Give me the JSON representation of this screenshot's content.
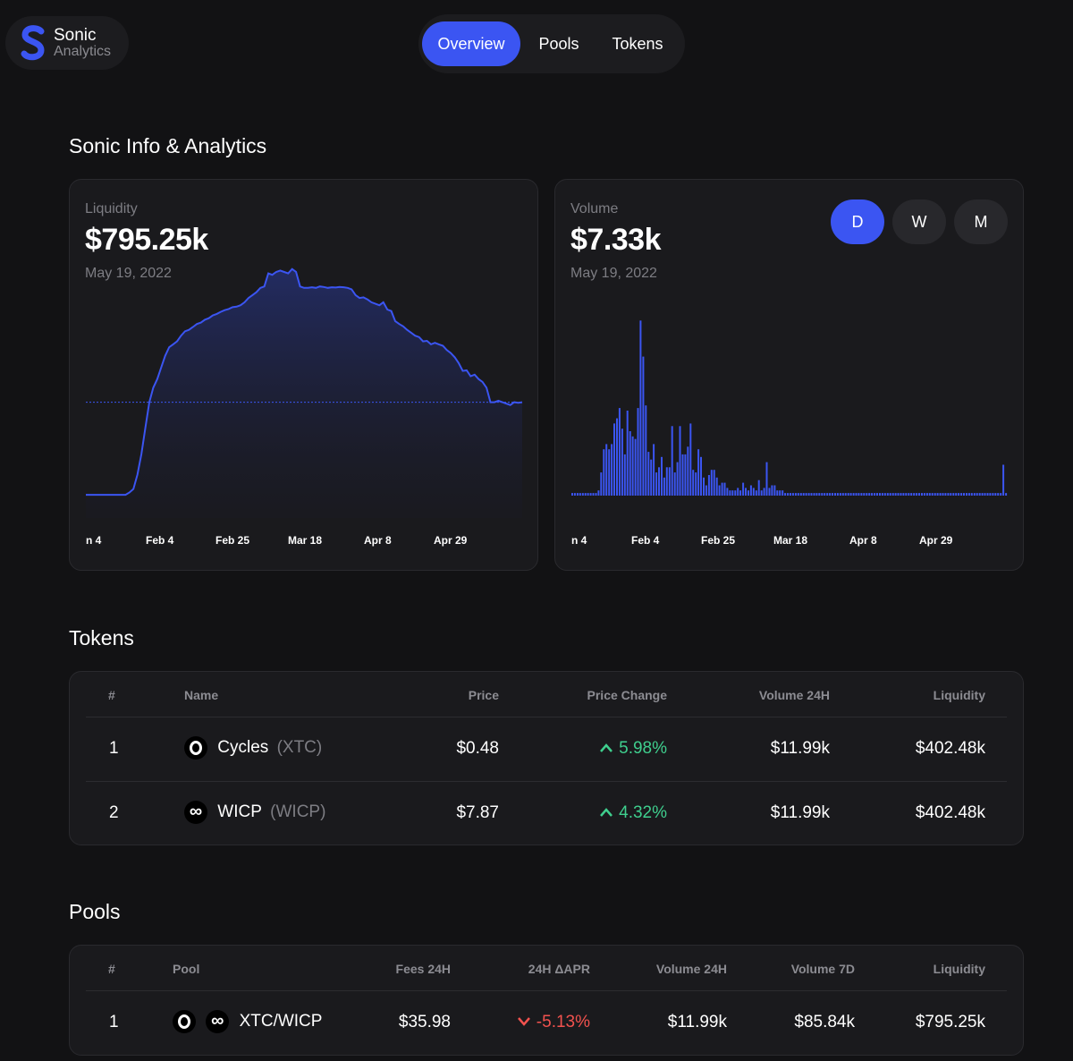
{
  "brand": {
    "title": "Sonic",
    "subtitle": "Analytics",
    "logo_icon": "sonic-s-logo-icon"
  },
  "nav": {
    "tabs": [
      "Overview",
      "Pools",
      "Tokens"
    ],
    "active": "Overview"
  },
  "colors": {
    "accent": "#3b55f2",
    "positive": "#3fcf8e",
    "negative": "#f2524e",
    "background": "#121214",
    "card": "#1a1a1d"
  },
  "overview": {
    "title": "Sonic Info & Analytics",
    "liquidity": {
      "label": "Liquidity",
      "value": "$795.25k",
      "date": "May 19, 2022"
    },
    "volume": {
      "label": "Volume",
      "value": "$7.33k",
      "date": "May 19, 2022",
      "ranges": [
        "D",
        "W",
        "M"
      ],
      "active_range": "D"
    }
  },
  "chart_data": [
    {
      "type": "area",
      "title": "",
      "x_tick_labels": [
        "n 4",
        "Feb 4",
        "Feb 25",
        "Mar 18",
        "Apr 8",
        "Apr 29"
      ],
      "values": [
        80,
        80,
        80,
        80,
        80,
        80,
        80,
        80,
        80,
        80,
        80,
        88,
        100,
        150,
        220,
        310,
        400,
        450,
        480,
        520,
        560,
        590,
        600,
        610,
        630,
        645,
        650,
        660,
        670,
        675,
        685,
        690,
        700,
        705,
        712,
        718,
        722,
        728,
        730,
        735,
        745,
        760,
        770,
        780,
        795,
        800,
        845,
        840,
        850,
        855,
        850,
        845,
        860,
        850,
        800,
        795,
        795,
        797,
        795,
        800,
        798,
        795,
        797,
        796,
        798,
        797,
        795,
        790,
        770,
        760,
        762,
        755,
        745,
        740,
        735,
        745,
        720,
        715,
        680,
        670,
        662,
        650,
        640,
        630,
        625,
        610,
        612,
        600,
        605,
        600,
        595,
        580,
        570,
        555,
        535,
        508,
        510,
        490,
        495,
        480,
        470,
        450,
        400,
        400,
        405,
        400,
        395,
        390,
        400,
        398,
        400
      ],
      "reference_line": 400
    },
    {
      "type": "bar",
      "title": "",
      "x_tick_labels": [
        "n 4",
        "Feb 4",
        "Feb 25",
        "Mar 18",
        "Apr 8",
        "Apr 29"
      ],
      "values": [
        0.1,
        0.1,
        0.1,
        0.1,
        0.1,
        0.1,
        0.1,
        0.1,
        0.1,
        0.1,
        0.2,
        0.9,
        1.8,
        2.0,
        1.8,
        2.0,
        2.8,
        3.0,
        3.4,
        2.6,
        1.6,
        3.3,
        2.5,
        2.3,
        2.2,
        3.4,
        6.8,
        5.4,
        3.5,
        1.7,
        1.4,
        2.0,
        0.9,
        1.1,
        1.5,
        0.7,
        1.1,
        1.1,
        2.7,
        0.9,
        1.3,
        2.7,
        1.6,
        1.6,
        1.9,
        2.8,
        1.0,
        0.9,
        1.8,
        1.5,
        0.7,
        0.4,
        0.8,
        1.0,
        1.0,
        0.7,
        0.4,
        0.5,
        0.5,
        0.3,
        0.2,
        0.2,
        0.2,
        0.3,
        0.2,
        0.5,
        0.3,
        0.2,
        0.4,
        0.3,
        0.2,
        0.6,
        0.2,
        0.3,
        1.3,
        0.3,
        0.4,
        0.4,
        0.2,
        0.2,
        0.2,
        0.1,
        0.1,
        0.1,
        0.1,
        0.1,
        0.1,
        0.1,
        0.1,
        0.1,
        0.1,
        0.1,
        0.1,
        0.1,
        0.1,
        0.1,
        0.1,
        0.1,
        0.1,
        0.1,
        0.1,
        0.1,
        0.1,
        0.1,
        0.1,
        0.1,
        0.1,
        0.1,
        0.1,
        0.1,
        0.1,
        0.1,
        0.1,
        0.1,
        0.1,
        0.1,
        0.1,
        0.1,
        0.1,
        0.1,
        0.1,
        0.1,
        0.1,
        0.1,
        0.1,
        0.1,
        0.1,
        0.1,
        0.1,
        0.1,
        0.1,
        0.1,
        0.1,
        0.1,
        0.1,
        0.1,
        0.1,
        0.1,
        0.1,
        0.1,
        0.1,
        0.1,
        0.1,
        0.1,
        0.1,
        0.1,
        0.1,
        0.1,
        0.1,
        0.1,
        0.1,
        0.1,
        0.1,
        0.1,
        0.1,
        0.1,
        0.1,
        0.1,
        0.1,
        0.1,
        0.1,
        0.1,
        0.1,
        0.1,
        1.2,
        0.1
      ],
      "ylim": [
        0,
        7.33
      ]
    }
  ],
  "tokens": {
    "title": "Tokens",
    "columns": [
      "#",
      "Name",
      "Price",
      "Price Change",
      "Volume 24H",
      "Liquidity"
    ],
    "rows": [
      {
        "index": "1",
        "name": "Cycles",
        "symbol": "(XTC)",
        "icon": "cycles-ring-icon",
        "price": "$0.48",
        "change": "5.98%",
        "change_dir": "up",
        "volume": "$11.99k",
        "liquidity": "$402.48k"
      },
      {
        "index": "2",
        "name": "WICP",
        "symbol": "(WICP)",
        "icon": "wicp-infinity-icon",
        "price": "$7.87",
        "change": "4.32%",
        "change_dir": "up",
        "volume": "$11.99k",
        "liquidity": "$402.48k"
      }
    ]
  },
  "pools": {
    "title": "Pools",
    "columns": [
      "#",
      "Pool",
      "Fees 24H",
      "24H ΔAPR",
      "Volume 24H",
      "Volume 7D",
      "Liquidity"
    ],
    "rows": [
      {
        "index": "1",
        "pair": "XTC/WICP",
        "fees": "$35.98",
        "apr": "-5.13%",
        "apr_dir": "down",
        "volume24": "$11.99k",
        "volume7d": "$85.84k",
        "liquidity": "$795.25k"
      }
    ]
  }
}
